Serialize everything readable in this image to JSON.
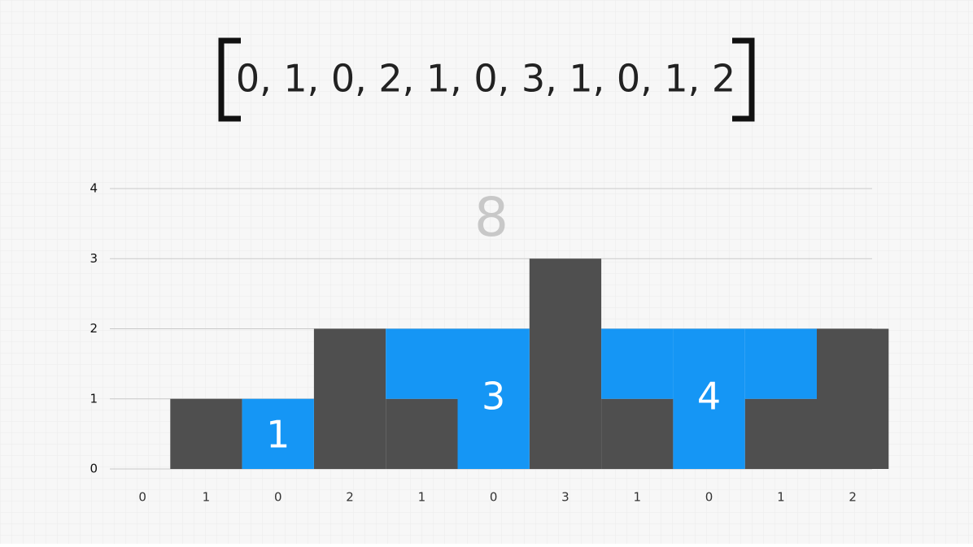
{
  "chart_data": {
    "type": "bar",
    "title": "0, 1, 0, 2, 1, 0, 3, 1, 0, 1, 2",
    "total": 8,
    "region_totals": [
      1,
      3,
      4
    ],
    "categories": [
      "0",
      "1",
      "0",
      "2",
      "1",
      "0",
      "3",
      "1",
      "0",
      "1",
      "2"
    ],
    "series": [
      {
        "color": "#4f4f4f",
        "values": [
          0,
          1,
          0,
          2,
          1,
          0,
          3,
          1,
          0,
          1,
          2
        ]
      },
      {
        "color": "#1596f5",
        "values": [
          0,
          0,
          1,
          0,
          1,
          2,
          0,
          1,
          2,
          1,
          0
        ]
      }
    ],
    "ylim": [
      0,
      4
    ],
    "yticks": [
      0,
      1,
      2,
      3,
      4
    ],
    "grid": true
  }
}
